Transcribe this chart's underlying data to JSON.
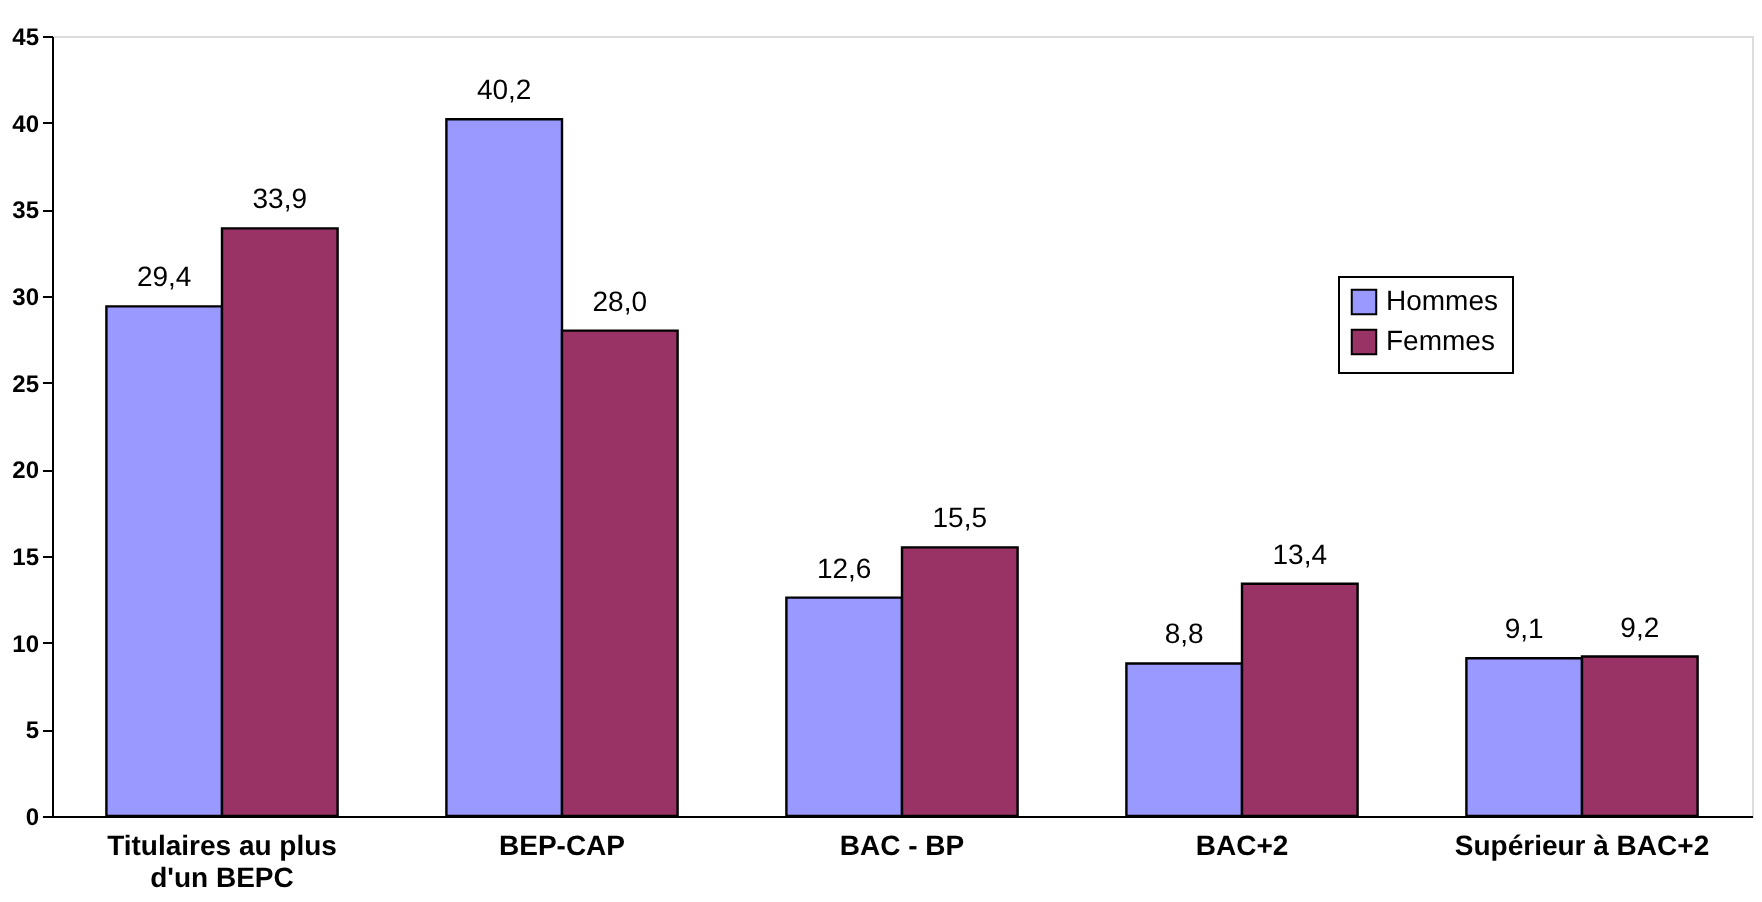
{
  "chart_data": {
    "type": "bar",
    "categories": [
      "Titulaires au plus d'un BEPC",
      "BEP-CAP",
      "BAC - BP",
      "BAC+2",
      "Supérieur à BAC+2"
    ],
    "series": [
      {
        "name": "Hommes",
        "color": "#9999ff",
        "values": [
          29.4,
          40.2,
          12.6,
          8.8,
          9.1
        ],
        "value_labels": [
          "29,4",
          "40,2",
          "12,6",
          "8,8",
          "9,1"
        ]
      },
      {
        "name": "Femmes",
        "color": "#993366",
        "values": [
          33.9,
          28.0,
          15.5,
          13.4,
          9.2
        ],
        "value_labels": [
          "33,9",
          "28,0",
          "15,5",
          "13,4",
          "9,2"
        ]
      }
    ],
    "ylim": [
      0,
      45
    ],
    "yticks": [
      0,
      5,
      10,
      15,
      20,
      25,
      30,
      35,
      40,
      45
    ],
    "grid": false,
    "legend": "top right"
  }
}
